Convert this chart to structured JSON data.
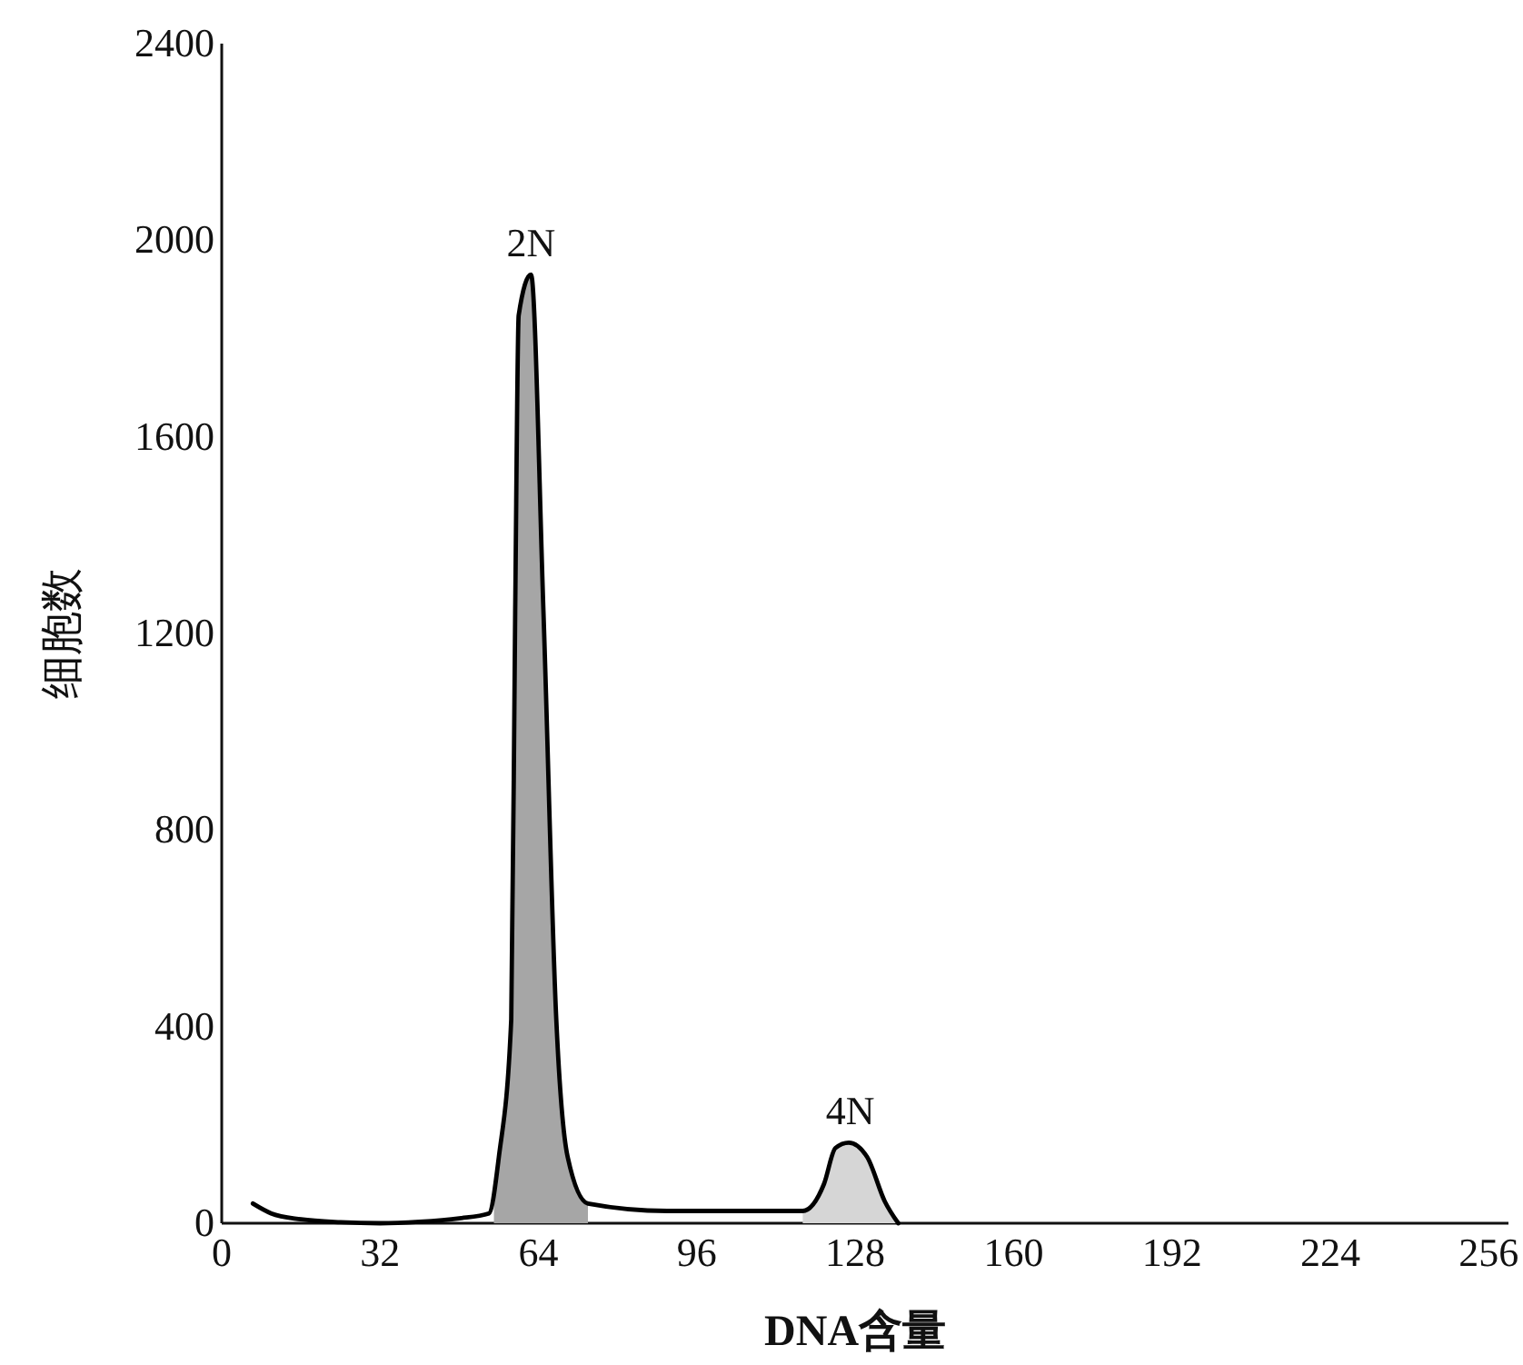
{
  "chart_data": {
    "type": "line",
    "xlabel": "DNA含量",
    "ylabel": "细胞数",
    "xlim": [
      0,
      260
    ],
    "xticks": [
      0,
      32,
      64,
      96,
      128,
      160,
      192,
      224,
      256
    ],
    "ylim": [
      0,
      2400
    ],
    "yticks": [
      0,
      400,
      800,
      1200,
      1600,
      2000,
      2400
    ],
    "grid": false,
    "marker": "none",
    "line_style": "solid",
    "annotations": [
      {
        "text": "2N",
        "x": 62.5,
        "y": 1930
      },
      {
        "text": "4N",
        "x": 127,
        "y": 164
      }
    ],
    "series": [
      {
        "type": "area",
        "color": "#a6a6a6",
        "x": [
          55,
          56,
          58.5,
          59.3,
          60,
          62.5,
          65,
          67.6,
          69.9,
          74
        ],
        "values": [
          30,
          135,
          415,
          1247,
          1847,
          1930,
          1247,
          415,
          135,
          40
        ]
      },
      {
        "type": "area",
        "color": "#d6d6d6",
        "x": [
          117.4,
          121.7,
          124,
          126.7,
          130.4,
          134,
          136.7
        ],
        "values": [
          25,
          80,
          153,
          164,
          135,
          44,
          0
        ]
      },
      {
        "color": "#000000",
        "x": [
          6.3,
          10,
          16,
          24,
          32,
          40,
          48,
          54,
          56,
          58.5,
          59.3,
          60,
          62.5,
          65,
          67.6,
          69.9,
          74,
          90,
          105,
          117.4,
          121.7,
          124,
          126.7,
          130.4,
          134,
          136.7
        ],
        "values": [
          40,
          20,
          8,
          2,
          0,
          3,
          10,
          20,
          135,
          415,
          1247,
          1847,
          1930,
          1247,
          415,
          135,
          40,
          25,
          25,
          25,
          80,
          153,
          164,
          135,
          44,
          0
        ]
      }
    ]
  }
}
